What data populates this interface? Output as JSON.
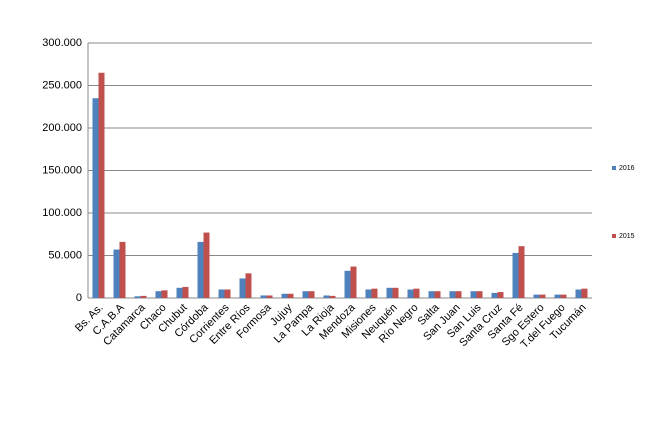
{
  "chart_data": {
    "type": "bar",
    "categories": [
      "Bs. As.",
      "C.A.B.A",
      "Catamarca",
      "Chaco",
      "Chubut",
      "Córdoba",
      "Corrientes",
      "Entre Ríos",
      "Formosa",
      "Jujuy",
      "La Pampa",
      "La Rioja",
      "Mendoza",
      "Misiones",
      "Neuquén",
      "Río Negro",
      "Salta",
      "San Juan",
      "San Luis",
      "Santa Cruz",
      "Santa Fé",
      "Sgo Estero",
      "T.del Fuego",
      "Tucumán"
    ],
    "series": [
      {
        "name": "2016",
        "color": "#4f81bd",
        "values": [
          235000,
          57000,
          2000,
          8000,
          12000,
          66000,
          10000,
          23000,
          3000,
          5000,
          8000,
          3000,
          32000,
          10000,
          12000,
          10000,
          8000,
          8000,
          8000,
          6000,
          53000,
          4000,
          4000,
          10000
        ]
      },
      {
        "name": "2015",
        "color": "#c0504d",
        "values": [
          265000,
          66000,
          2500,
          9000,
          13000,
          77000,
          10000,
          29000,
          3000,
          5000,
          8000,
          2500,
          37000,
          11000,
          12000,
          11000,
          8000,
          8000,
          8000,
          7000,
          61000,
          4000,
          4000,
          11000
        ]
      }
    ],
    "ylim": [
      0,
      300000
    ],
    "yticks": [
      0,
      {
        "value": 50000,
        "label": "50.000"
      },
      {
        "value": 100000,
        "label": "100.000"
      },
      {
        "value": 150000,
        "label": "150.000"
      },
      {
        "value": 200000,
        "label": "200.000"
      },
      {
        "value": 250000,
        "label": "250.000"
      },
      {
        "value": 300000,
        "label": "300.000"
      }
    ],
    "grid": true,
    "legend": "right"
  }
}
